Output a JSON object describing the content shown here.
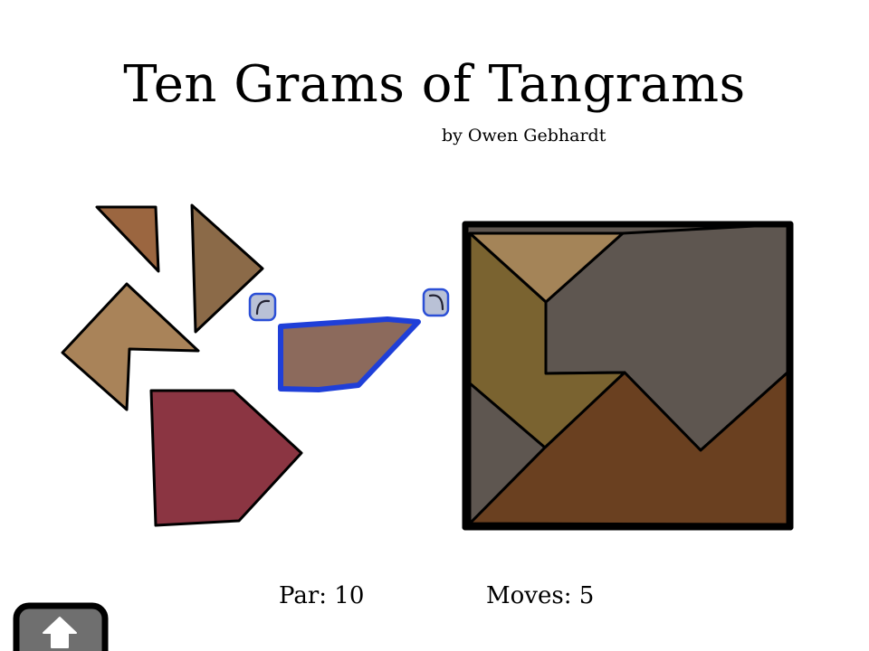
{
  "header": {
    "title": "Ten Grams of Tangrams",
    "byline": "by Owen Gebhardt"
  },
  "status": {
    "par": "Par: 10",
    "moves": "Moves: 5"
  },
  "colors": {
    "outline": "#000000",
    "selection": "#1f3fd8",
    "rotate_button_fill": "#b9c1d6",
    "home_button_fill": "#6f6f6f",
    "piece_brown_triangle": "#9b6640",
    "piece_tall_triangle": "#8b6a48",
    "piece_chevron": "#a98359",
    "piece_parallelogram": "#8c6a5c",
    "piece_pentagon": "#8b3542",
    "target_tan": "#a48458",
    "target_olive": "#7a6330",
    "target_gray": "#5e5650",
    "target_brown": "#6a4020"
  },
  "icons": {
    "rotate_left": "rotate-counterclockwise-icon",
    "rotate_right": "rotate-clockwise-icon",
    "home": "up-arrow-icon"
  }
}
